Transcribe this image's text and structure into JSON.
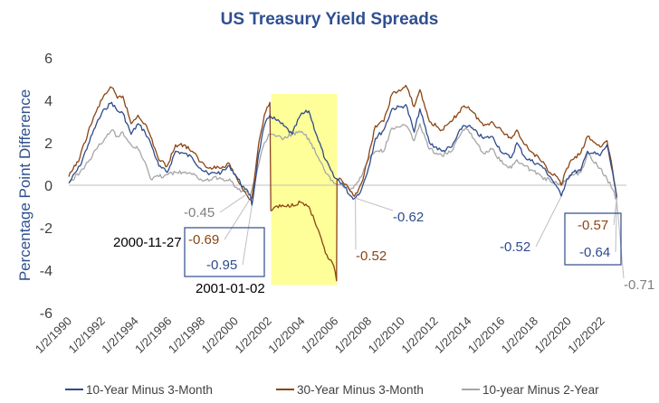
{
  "chart_data": {
    "type": "line",
    "title": "US Treasury Yield Spreads",
    "ylabel": "Percentage Point Difference",
    "xlabel": "",
    "ylim": [
      -6,
      6
    ],
    "yticks": [
      6,
      4,
      2,
      0,
      -2,
      -4,
      -6
    ],
    "xlim": [
      "1990-01-02",
      "2023-06-30"
    ],
    "xticks": [
      "1/2/1990",
      "1/2/1992",
      "1/2/1994",
      "1/2/1996",
      "1/2/1998",
      "1/2/2000",
      "1/2/2002",
      "1/2/2004",
      "1/2/2006",
      "1/2/2008",
      "1/2/2010",
      "1/2/2012",
      "1/2/2014",
      "1/2/2016",
      "1/2/2018",
      "1/2/2020",
      "1/2/2022"
    ],
    "grid": false,
    "legend_position": "bottom",
    "highlight": {
      "x_start": "2002-03-01",
      "x_end": "2006-02-15",
      "color": "#ffff99"
    },
    "series": [
      {
        "name": "10-Year Minus 3-Month",
        "color": "#2e4b8b",
        "points": [
          [
            "1990-01-02",
            0.1
          ],
          [
            "1990-09-01",
            0.9
          ],
          [
            "1991-03-01",
            1.9
          ],
          [
            "1991-09-01",
            2.9
          ],
          [
            "1992-03-01",
            3.6
          ],
          [
            "1992-08-01",
            3.9
          ],
          [
            "1992-12-01",
            3.5
          ],
          [
            "1993-04-01",
            3.4
          ],
          [
            "1993-10-01",
            2.4
          ],
          [
            "1994-03-01",
            2.9
          ],
          [
            "1994-08-01",
            2.5
          ],
          [
            "1994-12-01",
            2.0
          ],
          [
            "1995-06-01",
            0.9
          ],
          [
            "1995-12-01",
            0.6
          ],
          [
            "1996-06-01",
            1.6
          ],
          [
            "1996-12-01",
            1.5
          ],
          [
            "1997-06-01",
            1.3
          ],
          [
            "1997-12-01",
            0.8
          ],
          [
            "1998-06-01",
            0.5
          ],
          [
            "1998-10-01",
            0.6
          ],
          [
            "1999-03-01",
            0.6
          ],
          [
            "1999-09-01",
            0.9
          ],
          [
            "2000-03-01",
            0.3
          ],
          [
            "2000-08-01",
            -0.2
          ],
          [
            "2000-11-27",
            -0.45
          ],
          [
            "2001-01-02",
            -0.95
          ],
          [
            "2001-06-01",
            1.5
          ],
          [
            "2001-10-01",
            2.8
          ],
          [
            "2002-02-01",
            3.3
          ],
          [
            "2002-06-01",
            3.1
          ],
          [
            "2002-12-01",
            2.8
          ],
          [
            "2003-06-01",
            2.4
          ],
          [
            "2003-12-01",
            3.3
          ],
          [
            "2004-06-01",
            3.5
          ],
          [
            "2004-12-01",
            2.3
          ],
          [
            "2005-06-01",
            1.2
          ],
          [
            "2005-12-01",
            0.4
          ],
          [
            "2006-06-01",
            0.1
          ],
          [
            "2006-12-01",
            -0.5
          ],
          [
            "2007-03-01",
            -0.62
          ],
          [
            "2007-08-01",
            -0.2
          ],
          [
            "2008-01-01",
            0.8
          ],
          [
            "2008-06-01",
            2.2
          ],
          [
            "2008-12-01",
            2.6
          ],
          [
            "2009-06-01",
            3.6
          ],
          [
            "2010-01-01",
            3.7
          ],
          [
            "2010-04-01",
            3.8
          ],
          [
            "2010-10-01",
            2.5
          ],
          [
            "2011-02-01",
            3.6
          ],
          [
            "2011-09-01",
            2.0
          ],
          [
            "2012-06-01",
            1.6
          ],
          [
            "2013-01-01",
            1.8
          ],
          [
            "2013-09-01",
            2.8
          ],
          [
            "2014-01-01",
            2.8
          ],
          [
            "2014-12-01",
            2.2
          ],
          [
            "2015-06-01",
            2.3
          ],
          [
            "2016-02-01",
            1.5
          ],
          [
            "2016-08-01",
            1.3
          ],
          [
            "2016-12-01",
            2.0
          ],
          [
            "2017-06-01",
            1.3
          ],
          [
            "2018-06-01",
            0.9
          ],
          [
            "2018-12-01",
            0.4
          ],
          [
            "2019-05-01",
            -0.1
          ],
          [
            "2019-08-01",
            -0.52
          ],
          [
            "2019-12-01",
            0.3
          ],
          [
            "2020-04-01",
            0.6
          ],
          [
            "2020-10-01",
            0.7
          ],
          [
            "2021-03-01",
            1.6
          ],
          [
            "2021-12-01",
            1.4
          ],
          [
            "2022-05-01",
            1.9
          ],
          [
            "2022-09-01",
            0.6
          ],
          [
            "2022-12-01",
            -0.64
          ]
        ]
      },
      {
        "name": "30-Year Minus 3-Month",
        "color": "#8b4513",
        "points": [
          [
            "1990-01-02",
            0.4
          ],
          [
            "1990-09-01",
            1.3
          ],
          [
            "1991-03-01",
            2.5
          ],
          [
            "1991-09-01",
            3.5
          ],
          [
            "1992-03-01",
            4.3
          ],
          [
            "1992-08-01",
            4.6
          ],
          [
            "1992-12-01",
            4.1
          ],
          [
            "1993-04-01",
            4.2
          ],
          [
            "1993-10-01",
            2.9
          ],
          [
            "1994-03-01",
            3.3
          ],
          [
            "1994-08-01",
            2.9
          ],
          [
            "1994-12-01",
            2.3
          ],
          [
            "1995-06-01",
            1.2
          ],
          [
            "1995-12-01",
            0.9
          ],
          [
            "1996-06-01",
            1.9
          ],
          [
            "1996-12-01",
            1.9
          ],
          [
            "1997-06-01",
            1.6
          ],
          [
            "1997-12-01",
            1.1
          ],
          [
            "1998-06-01",
            0.8
          ],
          [
            "1998-10-01",
            0.9
          ],
          [
            "1999-03-01",
            0.8
          ],
          [
            "1999-09-01",
            1.0
          ],
          [
            "2000-03-01",
            0.2
          ],
          [
            "2000-08-01",
            -0.3
          ],
          [
            "2000-11-27",
            -0.69
          ],
          [
            "2001-01-02",
            -0.6
          ],
          [
            "2001-06-01",
            2.0
          ],
          [
            "2001-10-01",
            3.3
          ],
          [
            "2002-02-01",
            3.9
          ],
          [
            "2002-02-20",
            -1.2
          ],
          [
            "2002-06-01",
            -1.0
          ],
          [
            "2003-01-01",
            -1.0
          ],
          [
            "2003-12-01",
            -0.8
          ],
          [
            "2004-06-01",
            -1.0
          ],
          [
            "2004-12-01",
            -2.0
          ],
          [
            "2005-06-01",
            -3.2
          ],
          [
            "2005-12-01",
            -3.8
          ],
          [
            "2006-02-01",
            -4.5
          ],
          [
            "2006-02-10",
            0.3
          ],
          [
            "2006-06-01",
            0.2
          ],
          [
            "2006-12-01",
            -0.3
          ],
          [
            "2007-03-01",
            -0.52
          ],
          [
            "2007-08-01",
            0.1
          ],
          [
            "2008-01-01",
            1.3
          ],
          [
            "2008-06-01",
            2.8
          ],
          [
            "2008-12-01",
            3.0
          ],
          [
            "2009-06-01",
            4.3
          ],
          [
            "2010-01-01",
            4.5
          ],
          [
            "2010-04-01",
            4.7
          ],
          [
            "2010-10-01",
            3.7
          ],
          [
            "2011-02-01",
            4.5
          ],
          [
            "2011-09-01",
            3.0
          ],
          [
            "2012-06-01",
            2.6
          ],
          [
            "2013-01-01",
            3.0
          ],
          [
            "2013-09-01",
            3.7
          ],
          [
            "2014-01-01",
            3.7
          ],
          [
            "2014-12-01",
            2.8
          ],
          [
            "2015-06-01",
            3.0
          ],
          [
            "2016-02-01",
            2.5
          ],
          [
            "2016-08-01",
            2.2
          ],
          [
            "2016-12-01",
            2.6
          ],
          [
            "2017-06-01",
            1.9
          ],
          [
            "2018-06-01",
            1.1
          ],
          [
            "2018-12-01",
            0.6
          ],
          [
            "2019-05-01",
            0.4
          ],
          [
            "2019-08-01",
            0.0
          ],
          [
            "2019-12-01",
            0.8
          ],
          [
            "2020-04-01",
            1.2
          ],
          [
            "2020-10-01",
            1.5
          ],
          [
            "2021-03-01",
            2.3
          ],
          [
            "2021-12-01",
            1.8
          ],
          [
            "2022-05-01",
            2.1
          ],
          [
            "2022-09-01",
            0.7
          ],
          [
            "2022-12-01",
            -0.57
          ]
        ]
      },
      {
        "name": "10-year Minus 2-Year",
        "color": "#a6a6a6",
        "points": [
          [
            "1990-01-02",
            0.1
          ],
          [
            "1990-09-01",
            0.6
          ],
          [
            "1991-03-01",
            1.1
          ],
          [
            "1991-09-01",
            1.7
          ],
          [
            "1992-03-01",
            2.2
          ],
          [
            "1992-08-01",
            2.6
          ],
          [
            "1992-12-01",
            2.3
          ],
          [
            "1993-04-01",
            2.5
          ],
          [
            "1993-10-01",
            1.9
          ],
          [
            "1994-03-01",
            1.7
          ],
          [
            "1994-08-01",
            1.1
          ],
          [
            "1994-12-01",
            0.3
          ],
          [
            "1995-06-01",
            0.4
          ],
          [
            "1995-12-01",
            0.5
          ],
          [
            "1996-06-01",
            0.6
          ],
          [
            "1996-12-01",
            0.6
          ],
          [
            "1997-06-01",
            0.5
          ],
          [
            "1997-12-01",
            0.3
          ],
          [
            "1998-06-01",
            0.2
          ],
          [
            "1998-10-01",
            0.4
          ],
          [
            "1999-03-01",
            0.3
          ],
          [
            "1999-09-01",
            0.3
          ],
          [
            "2000-03-01",
            -0.2
          ],
          [
            "2000-08-01",
            -0.3
          ],
          [
            "2000-11-27",
            -0.45
          ],
          [
            "2001-01-02",
            -0.2
          ],
          [
            "2001-06-01",
            1.0
          ],
          [
            "2001-10-01",
            2.0
          ],
          [
            "2002-02-01",
            2.4
          ],
          [
            "2002-06-01",
            2.3
          ],
          [
            "2002-12-01",
            2.2
          ],
          [
            "2003-06-01",
            2.4
          ],
          [
            "2003-12-01",
            2.5
          ],
          [
            "2004-06-01",
            2.2
          ],
          [
            "2004-12-01",
            1.4
          ],
          [
            "2005-06-01",
            0.6
          ],
          [
            "2005-12-01",
            0.1
          ],
          [
            "2006-06-01",
            0.0
          ],
          [
            "2006-12-01",
            -0.2
          ],
          [
            "2007-03-01",
            0.0
          ],
          [
            "2007-08-01",
            0.4
          ],
          [
            "2008-01-01",
            1.2
          ],
          [
            "2008-06-01",
            1.6
          ],
          [
            "2008-12-01",
            1.6
          ],
          [
            "2009-06-01",
            2.7
          ],
          [
            "2010-01-01",
            2.8
          ],
          [
            "2010-04-01",
            2.8
          ],
          [
            "2010-10-01",
            2.1
          ],
          [
            "2011-02-01",
            2.9
          ],
          [
            "2011-09-01",
            1.7
          ],
          [
            "2012-06-01",
            1.4
          ],
          [
            "2013-01-01",
            1.6
          ],
          [
            "2013-09-01",
            2.6
          ],
          [
            "2014-01-01",
            2.6
          ],
          [
            "2014-12-01",
            1.5
          ],
          [
            "2015-06-01",
            1.7
          ],
          [
            "2016-02-01",
            1.0
          ],
          [
            "2016-08-01",
            0.8
          ],
          [
            "2016-12-01",
            1.2
          ],
          [
            "2017-06-01",
            0.9
          ],
          [
            "2018-06-01",
            0.4
          ],
          [
            "2018-12-01",
            0.2
          ],
          [
            "2019-05-01",
            0.1
          ],
          [
            "2019-08-01",
            0.0
          ],
          [
            "2019-12-01",
            0.3
          ],
          [
            "2020-04-01",
            0.5
          ],
          [
            "2020-10-01",
            0.6
          ],
          [
            "2021-03-01",
            1.5
          ],
          [
            "2021-12-01",
            0.8
          ],
          [
            "2022-05-01",
            0.3
          ],
          [
            "2022-09-01",
            -0.2
          ],
          [
            "2022-12-01",
            -0.71
          ]
        ]
      }
    ],
    "annotations": [
      {
        "text": "-0.45",
        "color": "#7f7f7f",
        "target": [
          "2000-11-27",
          -0.45
        ],
        "pos": "left"
      },
      {
        "text": "2000-11-27",
        "color": "#000000",
        "target": [
          "2000-11-27",
          -0.69
        ],
        "pos": "left"
      },
      {
        "text": "-0.69",
        "color": "#8b4513",
        "target": [
          "2000-11-27",
          -0.69
        ],
        "pos": "left"
      },
      {
        "text": "-0.95",
        "color": "#2e4b8b",
        "target": [
          "2001-01-02",
          -0.95
        ],
        "pos": "below-left"
      },
      {
        "text": "2001-01-02",
        "color": "#000000",
        "target": [
          "2001-01-02",
          -0.95
        ],
        "pos": "below"
      },
      {
        "text": "-0.62",
        "color": "#2e4b8b",
        "target": [
          "2007-03-01",
          -0.62
        ],
        "pos": "right"
      },
      {
        "text": "-0.52",
        "color": "#8b4513",
        "target": [
          "2007-03-01",
          -0.52
        ],
        "pos": "below-right"
      },
      {
        "text": "-0.52",
        "color": "#2e4b8b",
        "target": [
          "2019-08-01",
          -0.52
        ],
        "pos": "below-left"
      },
      {
        "text": "-0.57",
        "color": "#8b4513",
        "target": [
          "2022-12-01",
          -0.57
        ],
        "pos": "left"
      },
      {
        "text": "-0.64",
        "color": "#2e4b8b",
        "target": [
          "2022-12-01",
          -0.64
        ],
        "pos": "left"
      },
      {
        "text": "-0.71",
        "color": "#7f7f7f",
        "target": [
          "2022-12-01",
          -0.71
        ],
        "pos": "below-right"
      }
    ]
  }
}
